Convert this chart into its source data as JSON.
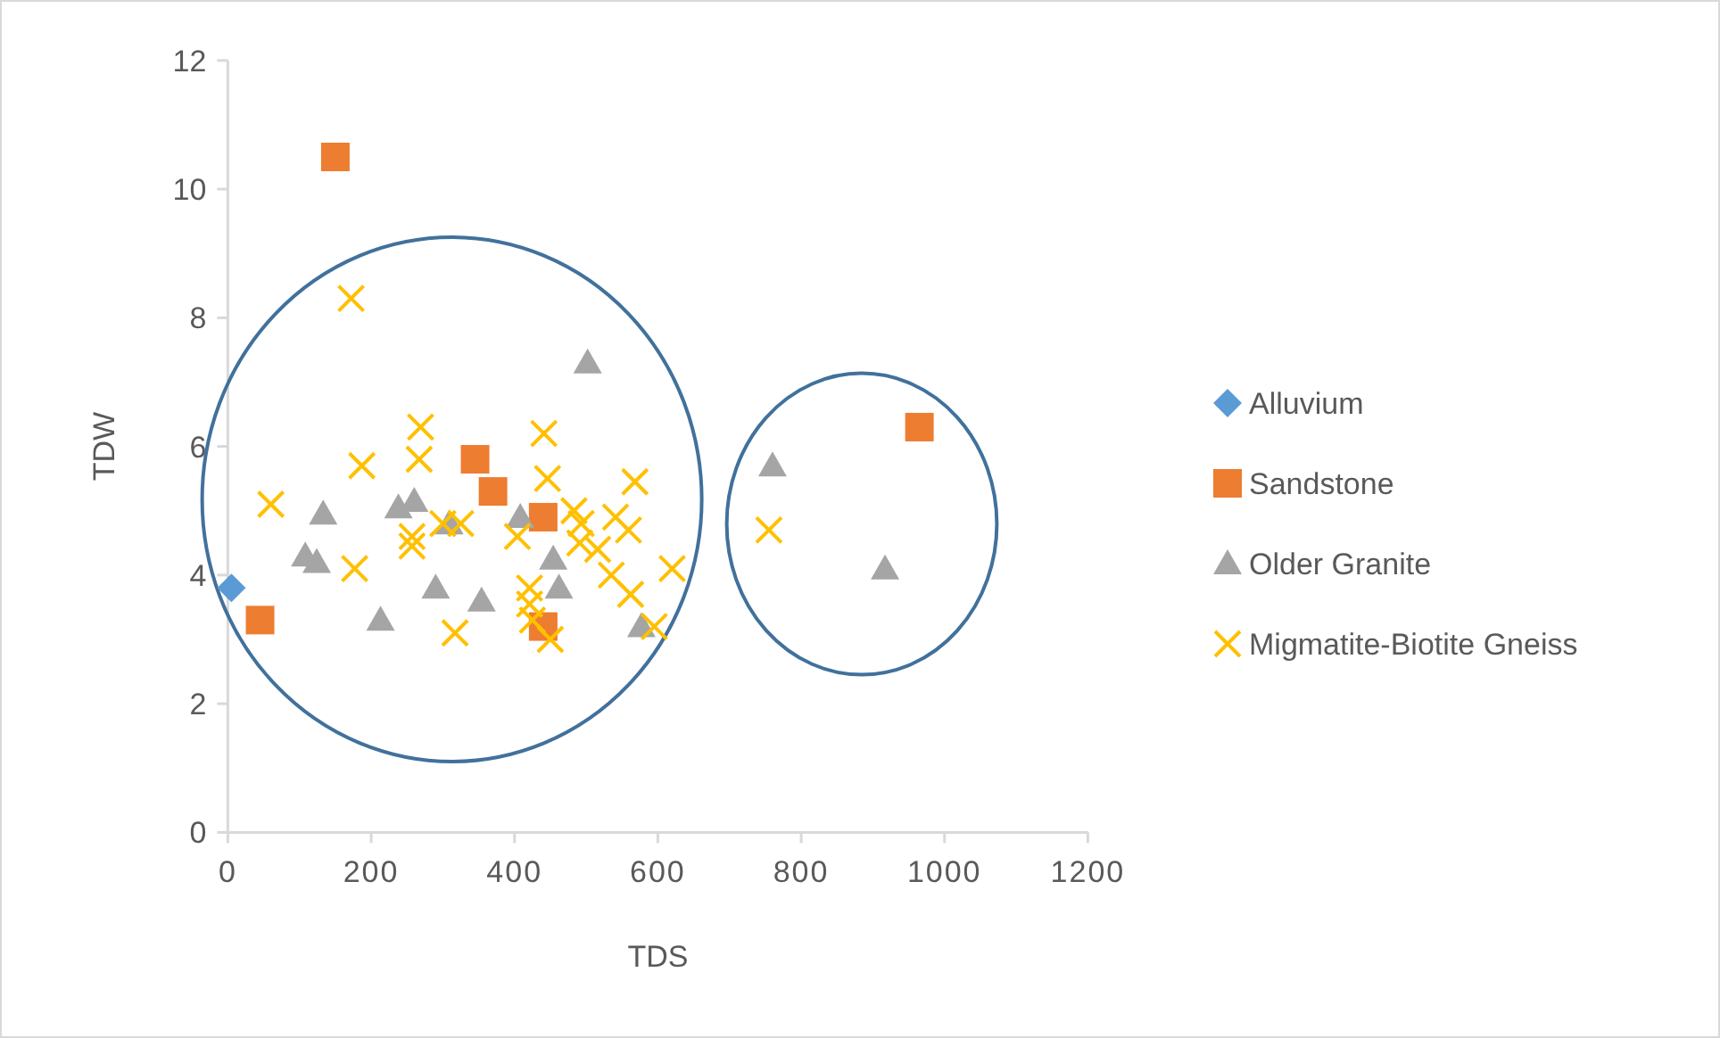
{
  "chart_data": {
    "type": "scatter",
    "xlabel": "TDS",
    "ylabel": "TDW",
    "xlim": [
      0,
      1200
    ],
    "xticks": [
      0,
      200,
      400,
      600,
      800,
      1000,
      1200
    ],
    "ylim": [
      0,
      12
    ],
    "yticks": [
      0,
      2,
      4,
      6,
      8,
      10,
      12
    ],
    "grid": false,
    "legend": "right",
    "series": [
      {
        "name": "Alluvium",
        "color": "#5b9bd5",
        "marker": "diamond",
        "x": [
          5
        ],
        "values": [
          3.8
        ]
      },
      {
        "name": "Sandstone",
        "color": "#ed7d31",
        "marker": "square",
        "x": [
          150,
          45,
          345,
          370,
          440,
          440,
          965
        ],
        "values": [
          10.5,
          3.3,
          5.8,
          5.3,
          4.9,
          3.2,
          6.3
        ]
      },
      {
        "name": "Older Granite",
        "color": "#a5a5a5",
        "marker": "triangle",
        "x": [
          133,
          108,
          124,
          213,
          238,
          260,
          290,
          309,
          354,
          408,
          454,
          462,
          502,
          577,
          760,
          917
        ],
        "values": [
          4.95,
          4.3,
          4.2,
          3.3,
          5.05,
          5.15,
          3.8,
          4.8,
          3.6,
          4.9,
          4.25,
          3.8,
          7.3,
          3.2,
          5.7,
          4.1
        ]
      },
      {
        "name": "Migmatite-Biotite Gneiss",
        "color": "#ffc000",
        "marker": "cross",
        "x": [
          60,
          172,
          187,
          177,
          269,
          267,
          257,
          257,
          300,
          325,
          317,
          404,
          421,
          421,
          425,
          441,
          446,
          450,
          483,
          493,
          491,
          516,
          541,
          535,
          559,
          568,
          562,
          595,
          620,
          755
        ],
        "values": [
          5.1,
          8.3,
          5.7,
          4.1,
          6.3,
          5.8,
          4.6,
          4.45,
          4.8,
          4.8,
          3.1,
          4.6,
          3.8,
          3.55,
          3.3,
          6.2,
          5.5,
          3.0,
          5.0,
          4.8,
          4.5,
          4.4,
          4.9,
          4.0,
          4.7,
          5.45,
          3.7,
          3.2,
          4.1,
          4.7
        ]
      }
    ]
  }
}
